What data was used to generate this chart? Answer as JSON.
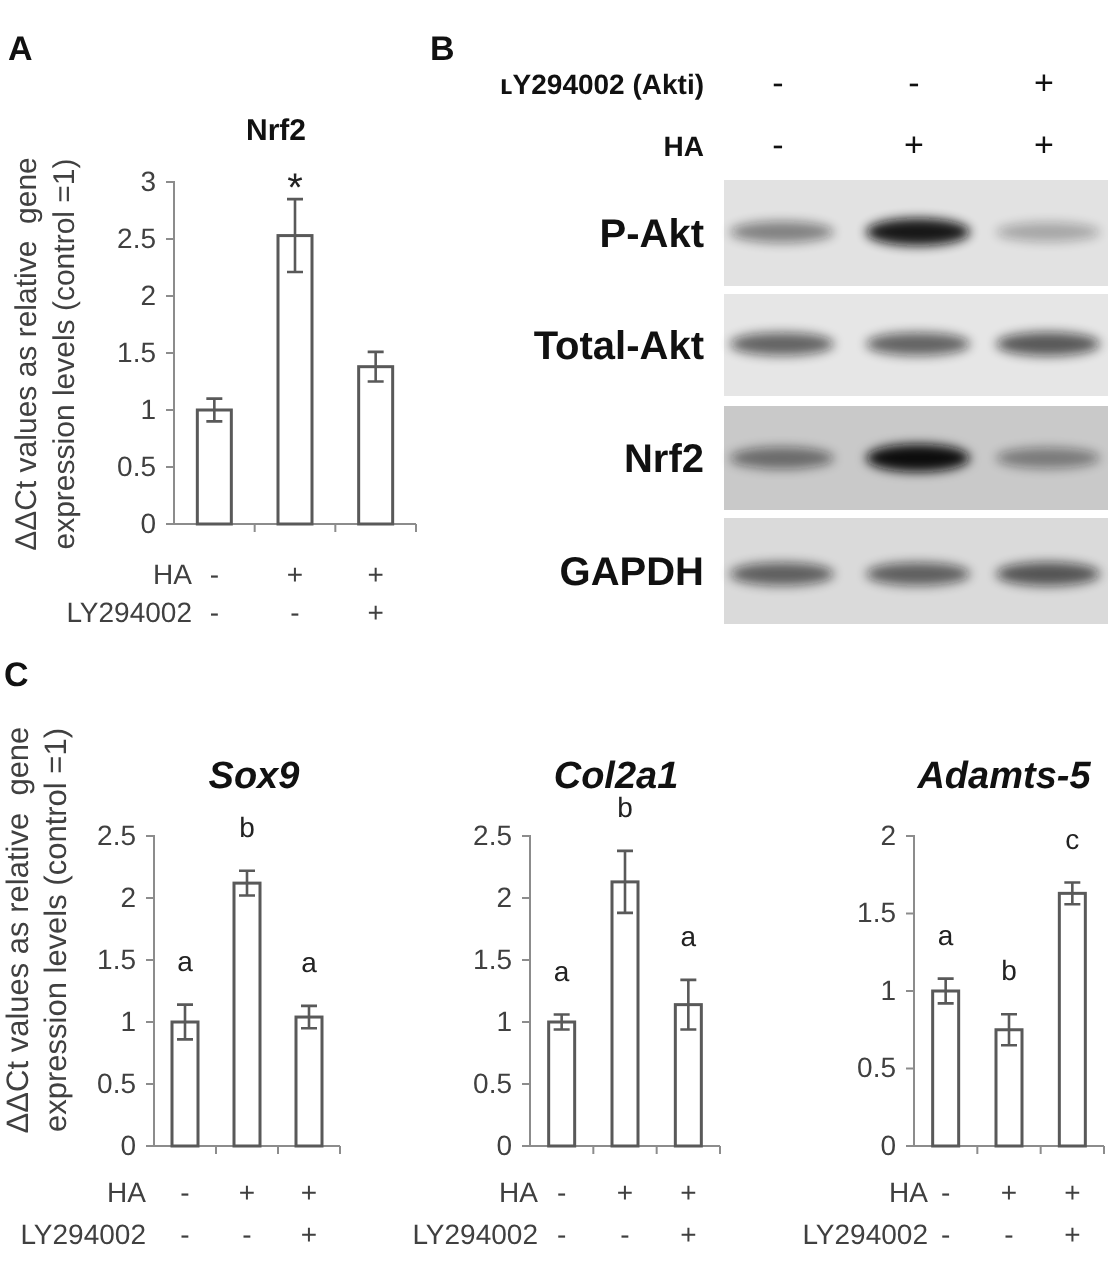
{
  "chart_data": [
    {
      "type": "bar",
      "title": "Nrf2",
      "ylabel": "ΔΔCt values as relative  gene\nexpression levels (control =1)",
      "categories": [
        "-\n-",
        "+\n-",
        "+\n+"
      ],
      "values": [
        1,
        2.53,
        1.38
      ],
      "errors": [
        0.1,
        0.32,
        0.13
      ],
      "value_labels": [
        null,
        "*",
        null
      ],
      "color": "#ffffff",
      "ylim": [
        0,
        3
      ],
      "yticks": [
        0,
        0.5,
        1,
        1.5,
        2,
        2.5,
        3
      ],
      "annotations": [
        "A",
        "HA",
        "LY294002"
      ]
    },
    {
      "type": "other",
      "categories": [
        "-\n-",
        "-\n+",
        "+\n+"
      ],
      "y_categories": [
        "P-Akt",
        "Total-Akt",
        "Nrf2",
        "GAPDH"
      ],
      "annotations": [
        "B",
        "ʟY294002 (Akti)",
        "HA"
      ]
    },
    {
      "type": "bar",
      "title": "Sox9",
      "ylabel": "ΔΔCt values as relative  gene\nexpression levels (control =1)",
      "categories": [
        "-\n-",
        "+\n-",
        "+\n+"
      ],
      "values": [
        1,
        2.12,
        1.04
      ],
      "errors": [
        0.14,
        0.1,
        0.09
      ],
      "value_labels": [
        "a",
        "b",
        "a"
      ],
      "color": "#ffffff",
      "ylim": [
        0,
        2.5
      ],
      "yticks": [
        0,
        0.5,
        1,
        1.5,
        2,
        2.5
      ],
      "annotations": [
        "C",
        "HA",
        "LY294002"
      ]
    },
    {
      "type": "bar",
      "title": "Col2a1",
      "categories": [
        "-\n-",
        "+\n-",
        "+\n+"
      ],
      "values": [
        1,
        2.13,
        1.14
      ],
      "errors": [
        0.06,
        0.25,
        0.2
      ],
      "value_labels": [
        "a",
        "b",
        "a"
      ],
      "color": "#ffffff",
      "ylim": [
        0,
        2.5
      ],
      "yticks": [
        0,
        0.5,
        1,
        1.5,
        2,
        2.5
      ],
      "annotations": [
        "HA",
        "LY294002"
      ]
    },
    {
      "type": "bar",
      "title": "Adamts-5",
      "categories": [
        "-\n-",
        "+\n-",
        "+\n+"
      ],
      "values": [
        1,
        0.75,
        1.63
      ],
      "errors": [
        0.08,
        0.1,
        0.07
      ],
      "value_labels": [
        "a",
        "b",
        "c"
      ],
      "color": "#ffffff",
      "ylim": [
        0,
        2
      ],
      "yticks": [
        0,
        0.5,
        1,
        1.5,
        2
      ],
      "annotations": [
        "HA",
        "LY294002"
      ]
    }
  ]
}
